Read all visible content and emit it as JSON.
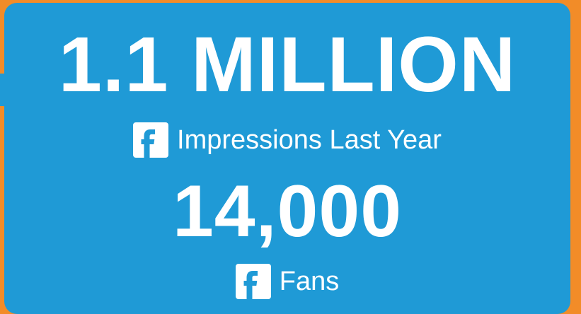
{
  "metrics": [
    {
      "value": "1.1 MILLION",
      "label": "Impressions Last Year",
      "icon": "facebook-icon"
    },
    {
      "value": "14,000",
      "label": "Fans",
      "icon": "facebook-icon"
    }
  ],
  "colors": {
    "background": "#f28c28",
    "card": "#1f9ad6",
    "text": "#ffffff"
  }
}
